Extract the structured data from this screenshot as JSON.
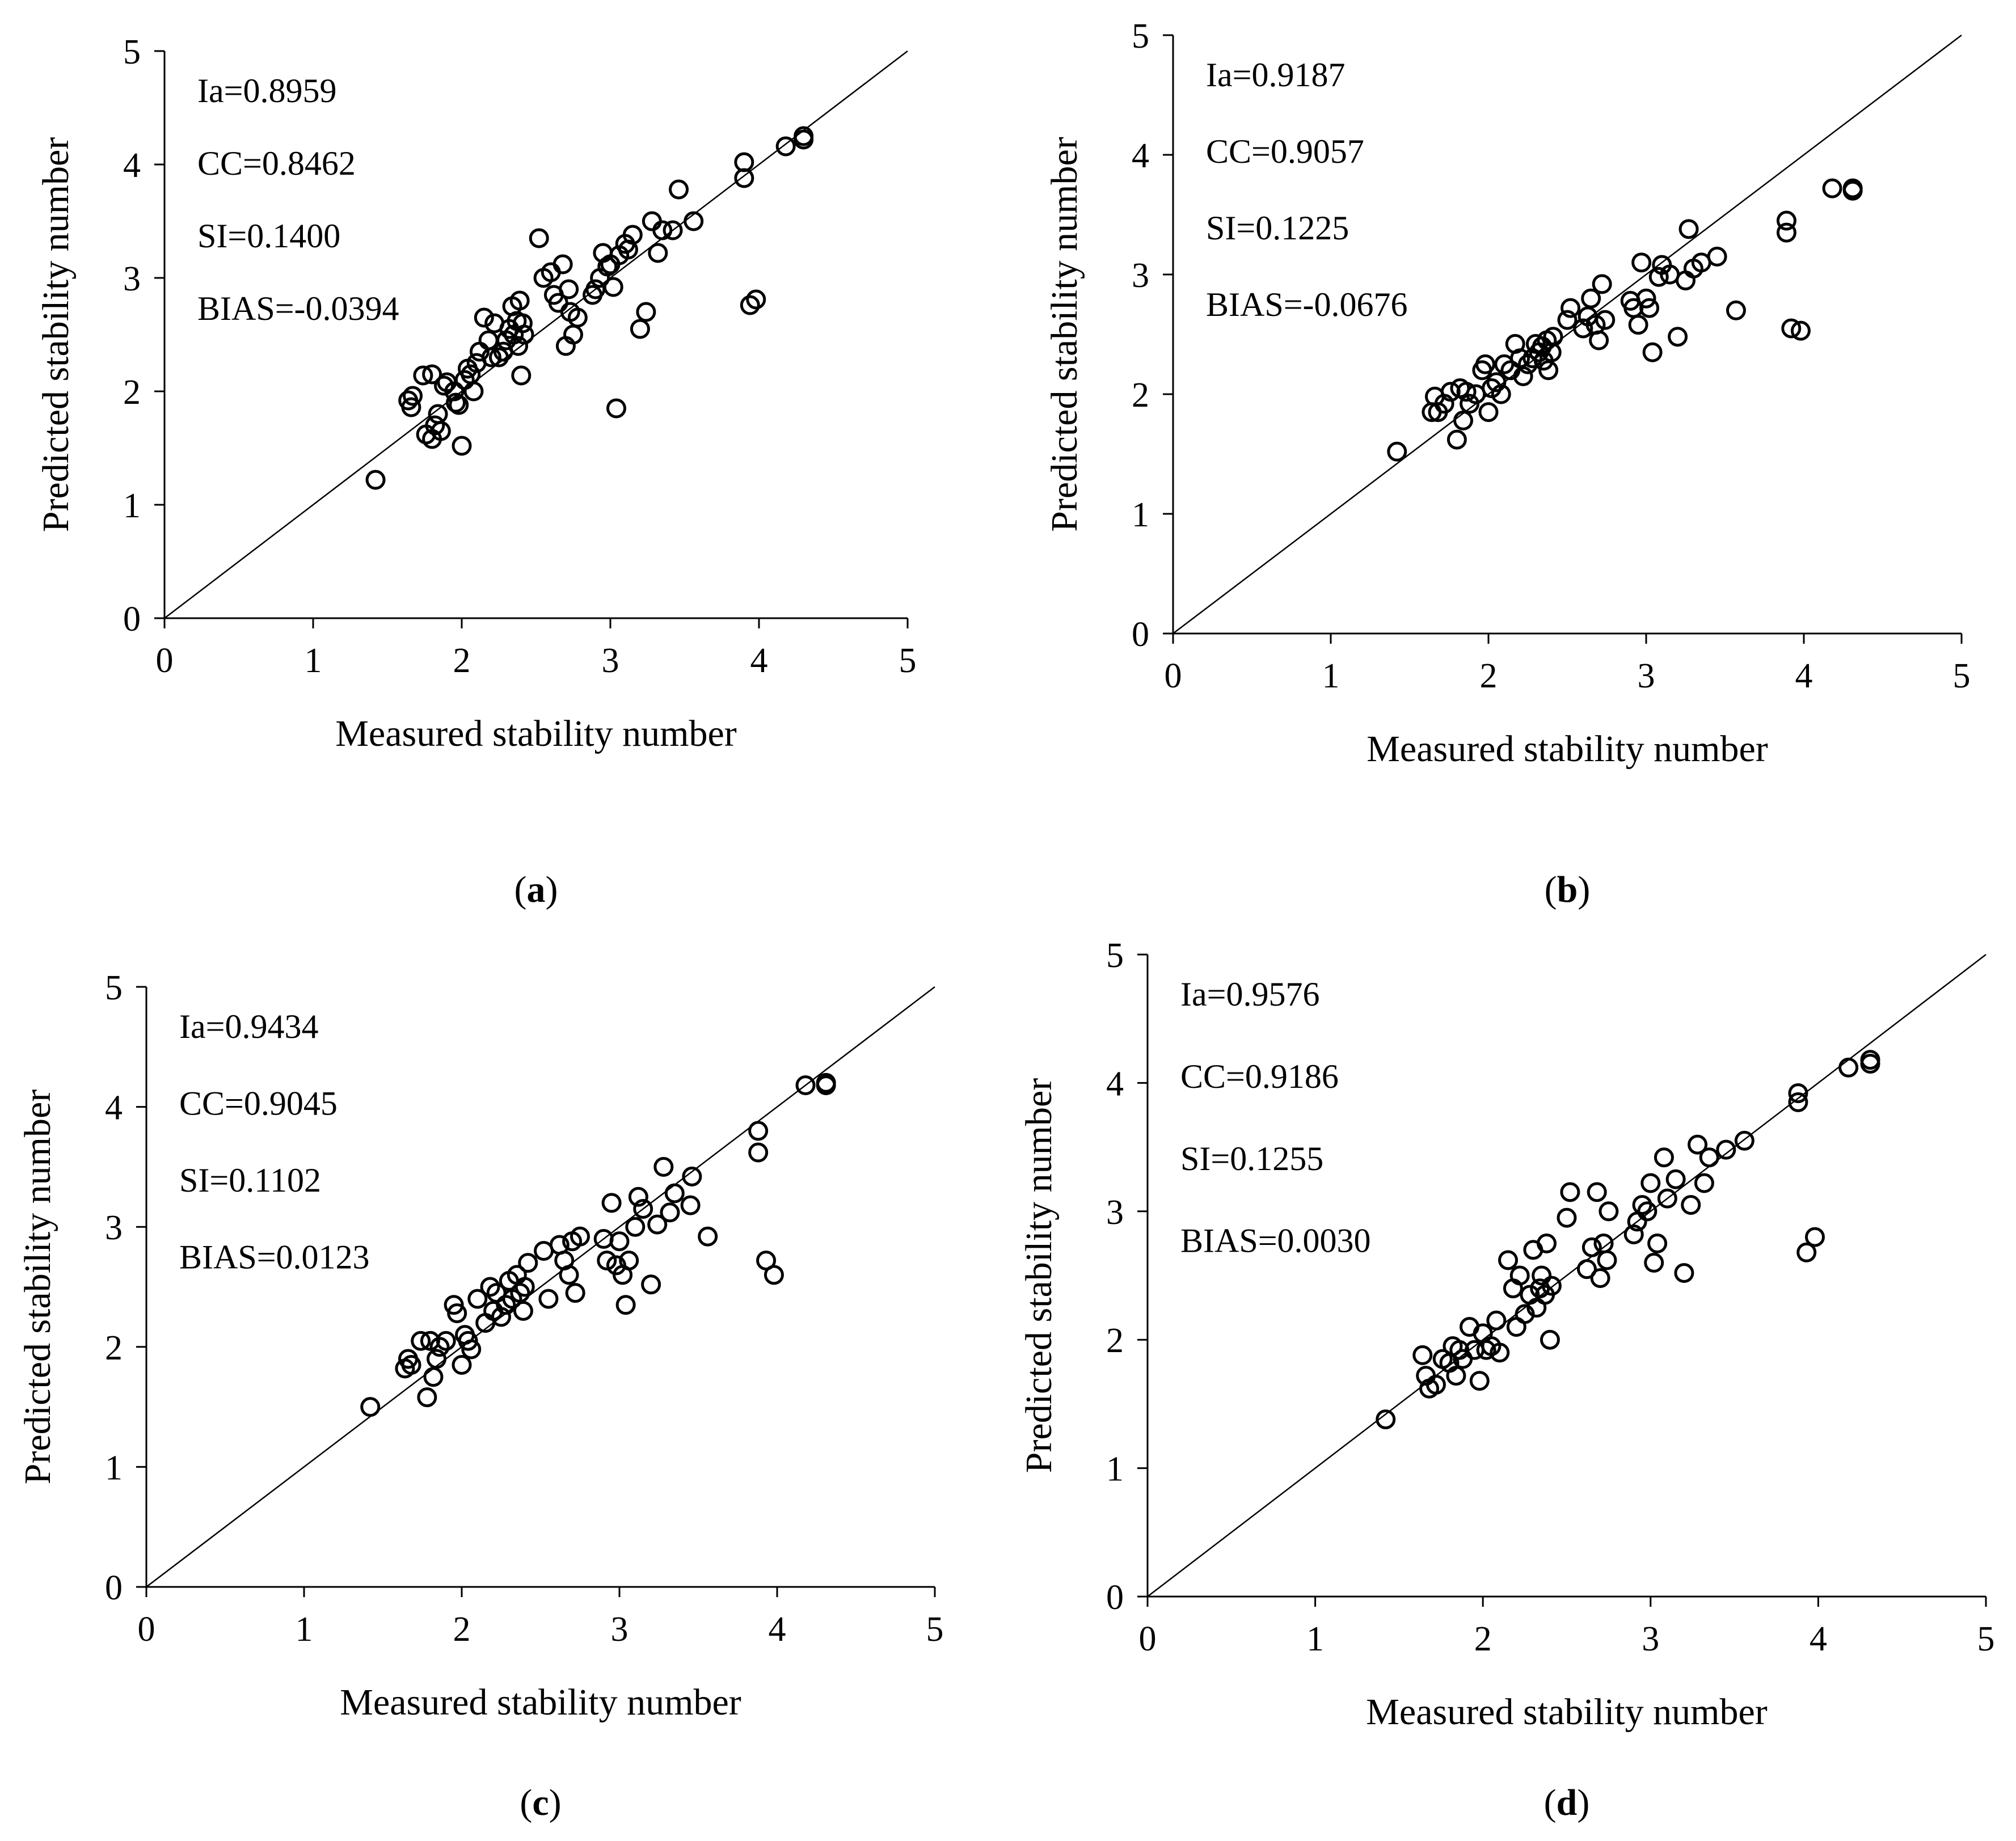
{
  "chart_data": [
    {
      "panel": "a",
      "type": "scatter",
      "caption": "a",
      "xlabel": "Measured stability number",
      "ylabel": "Predicted stability number",
      "xlim": [
        0,
        5
      ],
      "ylim": [
        0,
        5
      ],
      "xticks": [
        "0",
        "1",
        "2",
        "3",
        "4",
        "5"
      ],
      "yticks": [
        "0",
        "1",
        "2",
        "3",
        "4",
        "5"
      ],
      "reference_line": "y = x",
      "stats": [
        "Ia=0.8959",
        "CC=0.8462",
        "SI=0.1400",
        "BIAS=-0.0394"
      ],
      "points": [
        [
          1.42,
          1.22
        ],
        [
          1.64,
          1.92
        ],
        [
          1.66,
          1.86
        ],
        [
          1.67,
          1.96
        ],
        [
          1.74,
          2.14
        ],
        [
          1.76,
          1.62
        ],
        [
          1.8,
          2.15
        ],
        [
          1.8,
          1.58
        ],
        [
          1.82,
          1.7
        ],
        [
          1.84,
          1.8
        ],
        [
          1.86,
          1.65
        ],
        [
          1.88,
          2.05
        ],
        [
          1.9,
          2.08
        ],
        [
          1.95,
          2.0
        ],
        [
          1.96,
          1.9
        ],
        [
          1.98,
          1.88
        ],
        [
          2.0,
          1.52
        ],
        [
          2.02,
          2.1
        ],
        [
          2.04,
          2.2
        ],
        [
          2.06,
          2.15
        ],
        [
          2.08,
          2.0
        ],
        [
          2.1,
          2.25
        ],
        [
          2.12,
          2.35
        ],
        [
          2.15,
          2.65
        ],
        [
          2.18,
          2.45
        ],
        [
          2.2,
          2.3
        ],
        [
          2.22,
          2.6
        ],
        [
          2.25,
          2.3
        ],
        [
          2.28,
          2.35
        ],
        [
          2.3,
          2.45
        ],
        [
          2.32,
          2.55
        ],
        [
          2.34,
          2.75
        ],
        [
          2.35,
          2.5
        ],
        [
          2.37,
          2.62
        ],
        [
          2.38,
          2.4
        ],
        [
          2.39,
          2.8
        ],
        [
          2.4,
          2.14
        ],
        [
          2.41,
          2.6
        ],
        [
          2.42,
          2.5
        ],
        [
          2.52,
          3.35
        ],
        [
          2.55,
          3.0
        ],
        [
          2.6,
          3.05
        ],
        [
          2.62,
          2.85
        ],
        [
          2.65,
          2.78
        ],
        [
          2.68,
          3.12
        ],
        [
          2.7,
          2.4
        ],
        [
          2.72,
          2.9
        ],
        [
          2.73,
          2.7
        ],
        [
          2.75,
          2.5
        ],
        [
          2.78,
          2.65
        ],
        [
          2.88,
          2.85
        ],
        [
          2.9,
          2.9
        ],
        [
          2.93,
          3.0
        ],
        [
          2.95,
          3.22
        ],
        [
          2.98,
          3.1
        ],
        [
          3.0,
          3.12
        ],
        [
          3.02,
          2.92
        ],
        [
          3.04,
          1.85
        ],
        [
          3.06,
          3.2
        ],
        [
          3.1,
          3.3
        ],
        [
          3.12,
          3.25
        ],
        [
          3.15,
          3.38
        ],
        [
          3.2,
          2.55
        ],
        [
          3.24,
          2.7
        ],
        [
          3.28,
          3.5
        ],
        [
          3.32,
          3.22
        ],
        [
          3.35,
          3.42
        ],
        [
          3.42,
          3.42
        ],
        [
          3.46,
          3.78
        ],
        [
          3.56,
          3.5
        ],
        [
          3.9,
          4.02
        ],
        [
          3.9,
          3.88
        ],
        [
          3.94,
          2.76
        ],
        [
          3.98,
          2.81
        ],
        [
          4.18,
          4.16
        ],
        [
          4.3,
          4.22
        ],
        [
          4.3,
          4.25
        ]
      ]
    },
    {
      "panel": "b",
      "type": "scatter",
      "caption": "b",
      "xlabel": "Measured stability number",
      "ylabel": "Predicted stability number",
      "xlim": [
        0,
        5
      ],
      "ylim": [
        0,
        5
      ],
      "xticks": [
        "0",
        "1",
        "2",
        "3",
        "4",
        "5"
      ],
      "yticks": [
        "0",
        "1",
        "2",
        "3",
        "4",
        "5"
      ],
      "reference_line": "y = x",
      "stats": [
        "Ia=0.9187",
        "CC=0.9057",
        "SI=0.1225",
        "BIAS=-0.0676"
      ],
      "points": [
        [
          1.42,
          1.52
        ],
        [
          1.64,
          1.85
        ],
        [
          1.66,
          1.98
        ],
        [
          1.68,
          1.85
        ],
        [
          1.72,
          1.92
        ],
        [
          1.76,
          2.02
        ],
        [
          1.8,
          1.62
        ],
        [
          1.82,
          2.05
        ],
        [
          1.84,
          1.78
        ],
        [
          1.86,
          2.02
        ],
        [
          1.88,
          1.92
        ],
        [
          1.92,
          2.0
        ],
        [
          1.96,
          2.2
        ],
        [
          1.98,
          2.25
        ],
        [
          2.0,
          1.85
        ],
        [
          2.02,
          2.05
        ],
        [
          2.05,
          2.1
        ],
        [
          2.08,
          2.0
        ],
        [
          2.1,
          2.25
        ],
        [
          2.14,
          2.2
        ],
        [
          2.17,
          2.42
        ],
        [
          2.2,
          2.3
        ],
        [
          2.22,
          2.15
        ],
        [
          2.25,
          2.25
        ],
        [
          2.28,
          2.3
        ],
        [
          2.3,
          2.42
        ],
        [
          2.32,
          2.35
        ],
        [
          2.34,
          2.4
        ],
        [
          2.35,
          2.28
        ],
        [
          2.37,
          2.45
        ],
        [
          2.38,
          2.2
        ],
        [
          2.4,
          2.35
        ],
        [
          2.41,
          2.48
        ],
        [
          2.5,
          2.62
        ],
        [
          2.52,
          2.72
        ],
        [
          2.6,
          2.55
        ],
        [
          2.63,
          2.65
        ],
        [
          2.65,
          2.8
        ],
        [
          2.68,
          2.58
        ],
        [
          2.7,
          2.45
        ],
        [
          2.72,
          2.92
        ],
        [
          2.74,
          2.62
        ],
        [
          2.9,
          2.78
        ],
        [
          2.92,
          2.72
        ],
        [
          2.95,
          2.58
        ],
        [
          2.97,
          3.1
        ],
        [
          3.0,
          2.8
        ],
        [
          3.02,
          2.72
        ],
        [
          3.04,
          2.35
        ],
        [
          3.08,
          2.98
        ],
        [
          3.1,
          3.08
        ],
        [
          3.15,
          3.0
        ],
        [
          3.2,
          2.48
        ],
        [
          3.25,
          2.95
        ],
        [
          3.27,
          3.38
        ],
        [
          3.3,
          3.05
        ],
        [
          3.35,
          3.1
        ],
        [
          3.45,
          3.15
        ],
        [
          3.57,
          2.7
        ],
        [
          3.89,
          3.45
        ],
        [
          3.89,
          3.35
        ],
        [
          3.92,
          2.55
        ],
        [
          3.98,
          2.53
        ],
        [
          4.18,
          3.72
        ],
        [
          4.31,
          3.7
        ],
        [
          4.31,
          3.72
        ]
      ]
    },
    {
      "panel": "c",
      "type": "scatter",
      "caption": "c",
      "xlabel": "Measured stability number",
      "ylabel": "Predicted stability number",
      "xlim": [
        0,
        5
      ],
      "ylim": [
        0,
        5
      ],
      "xticks": [
        "0",
        "1",
        "2",
        "3",
        "4",
        "5"
      ],
      "yticks": [
        "0",
        "1",
        "2",
        "3",
        "4",
        "5"
      ],
      "reference_line": "y = x",
      "stats": [
        "Ia=0.9434",
        "CC=0.9045",
        "SI=0.1102",
        "BIAS=0.0123"
      ],
      "points": [
        [
          1.42,
          1.5
        ],
        [
          1.64,
          1.82
        ],
        [
          1.66,
          1.9
        ],
        [
          1.68,
          1.85
        ],
        [
          1.74,
          2.05
        ],
        [
          1.78,
          1.58
        ],
        [
          1.8,
          2.05
        ],
        [
          1.82,
          1.75
        ],
        [
          1.84,
          1.9
        ],
        [
          1.86,
          2.0
        ],
        [
          1.9,
          2.05
        ],
        [
          1.95,
          2.35
        ],
        [
          1.97,
          2.28
        ],
        [
          2.0,
          1.85
        ],
        [
          2.02,
          2.1
        ],
        [
          2.04,
          2.05
        ],
        [
          2.06,
          1.98
        ],
        [
          2.1,
          2.4
        ],
        [
          2.15,
          2.2
        ],
        [
          2.18,
          2.5
        ],
        [
          2.2,
          2.3
        ],
        [
          2.22,
          2.45
        ],
        [
          2.25,
          2.25
        ],
        [
          2.28,
          2.35
        ],
        [
          2.3,
          2.55
        ],
        [
          2.32,
          2.4
        ],
        [
          2.35,
          2.6
        ],
        [
          2.37,
          2.45
        ],
        [
          2.39,
          2.3
        ],
        [
          2.4,
          2.5
        ],
        [
          2.42,
          2.7
        ],
        [
          2.52,
          2.8
        ],
        [
          2.55,
          2.4
        ],
        [
          2.62,
          2.85
        ],
        [
          2.65,
          2.72
        ],
        [
          2.68,
          2.6
        ],
        [
          2.7,
          2.88
        ],
        [
          2.72,
          2.45
        ],
        [
          2.75,
          2.92
        ],
        [
          2.9,
          2.9
        ],
        [
          2.92,
          2.72
        ],
        [
          2.95,
          3.2
        ],
        [
          2.98,
          2.68
        ],
        [
          3.0,
          2.88
        ],
        [
          3.02,
          2.6
        ],
        [
          3.04,
          2.35
        ],
        [
          3.06,
          2.72
        ],
        [
          3.1,
          3.0
        ],
        [
          3.12,
          3.25
        ],
        [
          3.15,
          3.15
        ],
        [
          3.2,
          2.52
        ],
        [
          3.24,
          3.02
        ],
        [
          3.28,
          3.5
        ],
        [
          3.32,
          3.12
        ],
        [
          3.35,
          3.28
        ],
        [
          3.45,
          3.18
        ],
        [
          3.46,
          3.42
        ],
        [
          3.56,
          2.92
        ],
        [
          3.88,
          3.8
        ],
        [
          3.88,
          3.62
        ],
        [
          3.93,
          2.72
        ],
        [
          3.98,
          2.6
        ],
        [
          4.18,
          4.18
        ],
        [
          4.31,
          4.2
        ],
        [
          4.31,
          4.18
        ]
      ]
    },
    {
      "panel": "d",
      "type": "scatter",
      "caption": "d",
      "xlabel": "Measured stability number",
      "ylabel": "Predicted stability number",
      "xlim": [
        0,
        5
      ],
      "ylim": [
        0,
        5
      ],
      "xticks": [
        "0",
        "1",
        "2",
        "3",
        "4",
        "5"
      ],
      "yticks": [
        "0",
        "1",
        "2",
        "3",
        "4",
        "5"
      ],
      "reference_line": "y = x",
      "stats": [
        "Ia=0.9576",
        "CC=0.9186",
        "SI=0.1255",
        "BIAS=0.0030"
      ],
      "points": [
        [
          1.42,
          1.38
        ],
        [
          1.64,
          1.88
        ],
        [
          1.66,
          1.72
        ],
        [
          1.68,
          1.62
        ],
        [
          1.72,
          1.65
        ],
        [
          1.76,
          1.85
        ],
        [
          1.8,
          1.82
        ],
        [
          1.82,
          1.95
        ],
        [
          1.84,
          1.72
        ],
        [
          1.86,
          1.92
        ],
        [
          1.88,
          1.85
        ],
        [
          1.92,
          2.1
        ],
        [
          1.95,
          1.92
        ],
        [
          1.98,
          1.68
        ],
        [
          2.0,
          2.05
        ],
        [
          2.02,
          1.92
        ],
        [
          2.05,
          1.95
        ],
        [
          2.08,
          2.15
        ],
        [
          2.1,
          1.9
        ],
        [
          2.15,
          2.62
        ],
        [
          2.18,
          2.4
        ],
        [
          2.2,
          2.1
        ],
        [
          2.22,
          2.5
        ],
        [
          2.25,
          2.2
        ],
        [
          2.28,
          2.35
        ],
        [
          2.3,
          2.7
        ],
        [
          2.32,
          2.25
        ],
        [
          2.34,
          2.4
        ],
        [
          2.35,
          2.5
        ],
        [
          2.37,
          2.35
        ],
        [
          2.38,
          2.75
        ],
        [
          2.4,
          2.0
        ],
        [
          2.41,
          2.42
        ],
        [
          2.5,
          2.95
        ],
        [
          2.52,
          3.15
        ],
        [
          2.62,
          2.55
        ],
        [
          2.65,
          2.72
        ],
        [
          2.68,
          3.15
        ],
        [
          2.7,
          2.48
        ],
        [
          2.72,
          2.75
        ],
        [
          2.74,
          2.62
        ],
        [
          2.75,
          3.0
        ],
        [
          2.9,
          2.82
        ],
        [
          2.92,
          2.92
        ],
        [
          2.95,
          3.05
        ],
        [
          2.98,
          3.0
        ],
        [
          3.0,
          3.22
        ],
        [
          3.02,
          2.6
        ],
        [
          3.04,
          2.75
        ],
        [
          3.08,
          3.42
        ],
        [
          3.1,
          3.1
        ],
        [
          3.15,
          3.25
        ],
        [
          3.2,
          2.52
        ],
        [
          3.24,
          3.05
        ],
        [
          3.28,
          3.52
        ],
        [
          3.32,
          3.22
        ],
        [
          3.35,
          3.42
        ],
        [
          3.45,
          3.48
        ],
        [
          3.56,
          3.55
        ],
        [
          3.88,
          3.92
        ],
        [
          3.88,
          3.85
        ],
        [
          3.93,
          2.68
        ],
        [
          3.98,
          2.8
        ],
        [
          4.18,
          4.12
        ],
        [
          4.31,
          4.15
        ],
        [
          4.31,
          4.18
        ]
      ]
    }
  ]
}
